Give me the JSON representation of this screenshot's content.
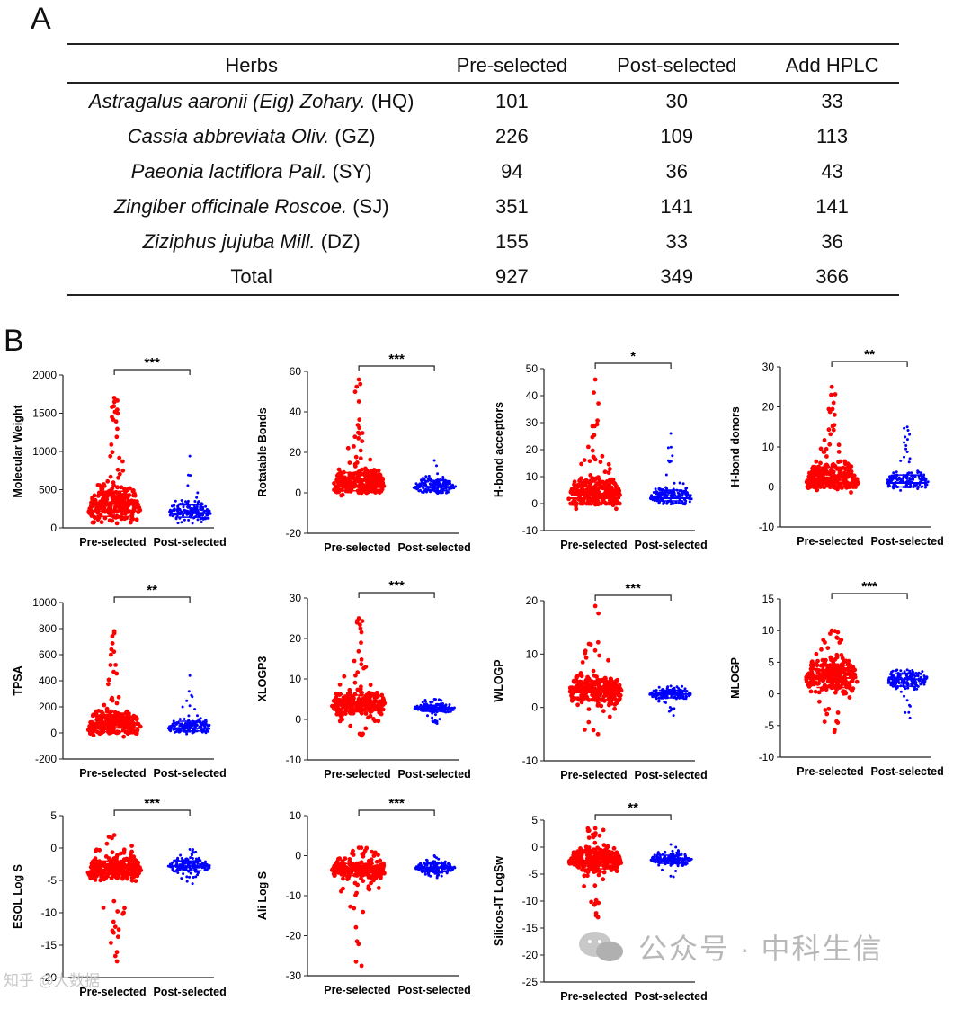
{
  "panelA": {
    "letter": "A",
    "headers": [
      "Herbs",
      "Pre-selected",
      "Post-selected",
      "Add HPLC"
    ],
    "rows": [
      {
        "herb_italic": "Astragalus aaronii (Eig) Zohary.",
        "code": "(HQ)",
        "pre": "101",
        "post": "30",
        "add": "33"
      },
      {
        "herb_italic": "Cassia abbreviata Oliv.",
        "code": "(GZ)",
        "pre": "226",
        "post": "109",
        "add": "113"
      },
      {
        "herb_italic": "Paeonia lactiflora Pall.",
        "code": "(SY)",
        "pre": "94",
        "post": "36",
        "add": "43"
      },
      {
        "herb_italic": "Zingiber officinale Roscoe.",
        "code": "(SJ)",
        "pre": "351",
        "post": "141",
        "add": "141"
      },
      {
        "herb_italic": "Ziziphus jujuba Mill.",
        "code": "(DZ)",
        "pre": "155",
        "post": "33",
        "add": "36"
      }
    ],
    "total": {
      "label": "Total",
      "pre": "927",
      "post": "349",
      "add": "366"
    }
  },
  "panelB": {
    "letter": "B",
    "groups": [
      "Pre-selected",
      "Post-selected"
    ],
    "colors": {
      "pre": "#ff0000",
      "post": "#0000ff"
    }
  },
  "chart_data": [
    {
      "type": "scatter",
      "ylabel": "Molecular Weight",
      "ylim": [
        0,
        2000
      ],
      "ticks": [
        0,
        500,
        1000,
        1500,
        2000
      ],
      "sig": "***",
      "pre": {
        "median": 220,
        "lo": 60,
        "hi": 1700,
        "q1": 150,
        "q3": 480
      },
      "post": {
        "median": 190,
        "lo": 60,
        "hi": 940,
        "q1": 140,
        "q3": 300
      }
    },
    {
      "type": "scatter",
      "ylabel": "Rotatable Bonds",
      "ylim": [
        -20,
        60
      ],
      "ticks": [
        -20,
        0,
        20,
        40,
        60
      ],
      "sig": "***",
      "pre": {
        "median": 3,
        "lo": 0,
        "hi": 56,
        "q1": 1,
        "q3": 10
      },
      "post": {
        "median": 3,
        "lo": 0,
        "hi": 16,
        "q1": 1,
        "q3": 6
      }
    },
    {
      "type": "scatter",
      "ylabel": "H-bond acceptors",
      "ylim": [
        -10,
        50
      ],
      "ticks": [
        -10,
        0,
        10,
        20,
        30,
        40,
        50
      ],
      "sig": "*",
      "pre": {
        "median": 2,
        "lo": 0,
        "hi": 46,
        "q1": 0,
        "q3": 8
      },
      "post": {
        "median": 2,
        "lo": 0,
        "hi": 26,
        "q1": 1,
        "q3": 5
      }
    },
    {
      "type": "scatter",
      "ylabel": "H-bond donors",
      "ylim": [
        -10,
        30
      ],
      "ticks": [
        -10,
        0,
        10,
        20,
        30
      ],
      "sig": "**",
      "pre": {
        "median": 1,
        "lo": 0,
        "hi": 25,
        "q1": 0,
        "q3": 5
      },
      "post": {
        "median": 1,
        "lo": 0,
        "hi": 15,
        "q1": 0,
        "q3": 3
      }
    },
    {
      "type": "scatter",
      "ylabel": "TPSA",
      "ylim": [
        -200,
        1000
      ],
      "ticks": [
        -200,
        0,
        200,
        400,
        600,
        800,
        1000
      ],
      "sig": "**",
      "pre": {
        "median": 40,
        "lo": 0,
        "hi": 780,
        "q1": 10,
        "q3": 140
      },
      "post": {
        "median": 35,
        "lo": 0,
        "hi": 440,
        "q1": 15,
        "q3": 90
      }
    },
    {
      "type": "scatter",
      "ylabel": "XLOGP3",
      "ylim": [
        -10,
        30
      ],
      "ticks": [
        -10,
        0,
        10,
        20,
        30
      ],
      "sig": "***",
      "pre": {
        "median": 3.5,
        "lo": -4,
        "hi": 25,
        "q1": 2,
        "q3": 6
      },
      "post": {
        "median": 2.8,
        "lo": -1,
        "hi": 5,
        "q1": 2,
        "q3": 3.5
      }
    },
    {
      "type": "scatter",
      "ylabel": "WLOGP",
      "ylim": [
        -10,
        20
      ],
      "ticks": [
        -10,
        0,
        10,
        20
      ],
      "sig": "***",
      "pre": {
        "median": 2.8,
        "lo": -5,
        "hi": 19,
        "q1": 1.5,
        "q3": 5
      },
      "post": {
        "median": 2.5,
        "lo": -1.5,
        "hi": 4,
        "q1": 1.8,
        "q3": 3.2
      }
    },
    {
      "type": "scatter",
      "ylabel": "MLOGP",
      "ylim": [
        -10,
        15
      ],
      "ticks": [
        -10,
        -5,
        0,
        5,
        10,
        15
      ],
      "sig": "***",
      "pre": {
        "median": 2.5,
        "lo": -6,
        "hi": 10,
        "q1": 1,
        "q3": 4.5
      },
      "post": {
        "median": 2.3,
        "lo": -3.8,
        "hi": 3.8,
        "q1": 1.2,
        "q3": 3.2
      }
    },
    {
      "type": "scatter",
      "ylabel": "ESOL Log S",
      "ylim": [
        -20,
        5
      ],
      "ticks": [
        -20,
        -15,
        -10,
        -5,
        0,
        5
      ],
      "sig": "***",
      "pre": {
        "median": -3.5,
        "lo": -17.5,
        "hi": 2,
        "q1": -4.5,
        "q3": -2
      },
      "post": {
        "median": -2.8,
        "lo": -5.5,
        "hi": -0.2,
        "q1": -3.5,
        "q3": -2
      }
    },
    {
      "type": "scatter",
      "ylabel": "Ali Log S",
      "ylim": [
        -30,
        10
      ],
      "ticks": [
        -30,
        -20,
        -10,
        0,
        10
      ],
      "sig": "***",
      "pre": {
        "median": -3.5,
        "lo": -27.5,
        "hi": 2,
        "q1": -5,
        "q3": -2
      },
      "post": {
        "median": -3,
        "lo": -5.5,
        "hi": 0,
        "q1": -4,
        "q3": -2
      }
    },
    {
      "type": "scatter",
      "ylabel": "Silicos-IT LogSw",
      "ylim": [
        -25,
        5
      ],
      "ticks": [
        -25,
        -20,
        -15,
        -10,
        -5,
        0,
        5
      ],
      "sig": "**",
      "pre": {
        "median": -2.8,
        "lo": -13,
        "hi": 3.5,
        "q1": -4,
        "q3": -1
      },
      "post": {
        "median": -2.2,
        "lo": -5.5,
        "hi": 0.5,
        "q1": -3,
        "q3": -1.5
      }
    }
  ],
  "watermark": {
    "main": "公众号 · 中科生信",
    "small": "知乎 @大数据"
  }
}
